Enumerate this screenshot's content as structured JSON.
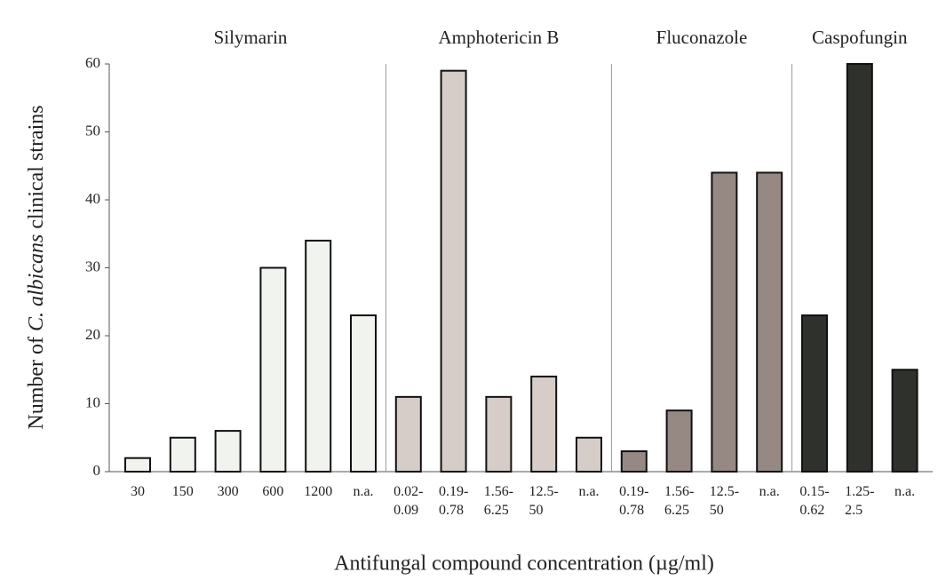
{
  "chart_data": {
    "type": "bar",
    "y_label": [
      "Number of",
      "C. albicans",
      "clinical strains"
    ],
    "x_label": "Antifungal compound concentration (µg/ml)",
    "ylim": [
      0,
      60
    ],
    "yticks": [
      0,
      10,
      20,
      30,
      40,
      50,
      60
    ],
    "grid": false,
    "groups": [
      {
        "name": "Silymarin",
        "color": "#f1f4ee",
        "categories": [
          "30",
          "150",
          "300",
          "600",
          "1200",
          "n.a."
        ],
        "values": [
          2,
          5,
          6,
          30,
          34,
          23
        ]
      },
      {
        "name": "Amphotericin B",
        "color": "#d6ccc8",
        "categories": [
          "0.02-\n0.09",
          "0.19-\n0.78",
          "1.56-\n6.25",
          "12.5-\n50",
          "n.a."
        ],
        "values": [
          11,
          59,
          11,
          14,
          5
        ]
      },
      {
        "name": "Fluconazole",
        "color": "#968984",
        "categories": [
          "0.19-\n0.78",
          "1.56-\n6.25",
          "12.5-\n50",
          "n.a."
        ],
        "values": [
          3,
          9,
          44,
          44
        ]
      },
      {
        "name": "Caspofungin",
        "color": "#2e312c",
        "categories": [
          "0.15-\n0.62",
          "1.25-\n2.5",
          "n.a."
        ],
        "values": [
          23,
          60,
          15
        ]
      }
    ]
  }
}
